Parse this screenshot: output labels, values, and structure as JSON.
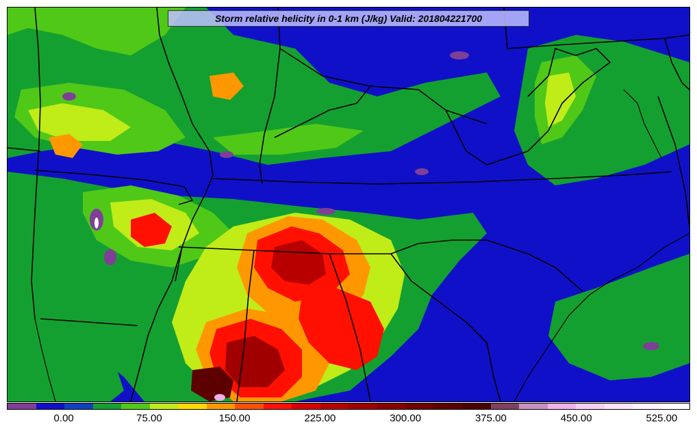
{
  "title": "Storm relative helicity in 0-1 km (J/kg) Valid: 201804221700",
  "colorbar": {
    "colors": [
      "#7f3f97",
      "#1010c8",
      "#1040c0",
      "#14a030",
      "#50c818",
      "#c0ec18",
      "#ffd800",
      "#ff9800",
      "#ff5000",
      "#ff1000",
      "#d80000",
      "#b80000",
      "#a00000",
      "#880000",
      "#700000",
      "#5c0000",
      "#4a0000",
      "#804060",
      "#c890c0",
      "#f0b0e8",
      "#f8d0f4",
      "#fce4fa",
      "#fff4ff",
      "#ffffff"
    ],
    "ticks": [
      {
        "label": "0.00",
        "index": 2
      },
      {
        "label": "75.00",
        "index": 5
      },
      {
        "label": "150.00",
        "index": 8
      },
      {
        "label": "225.00",
        "index": 11
      },
      {
        "label": "300.00",
        "index": 14
      },
      {
        "label": "375.00",
        "index": 17
      },
      {
        "label": "450.00",
        "index": 20
      },
      {
        "label": "525.00",
        "index": 23
      }
    ]
  }
}
